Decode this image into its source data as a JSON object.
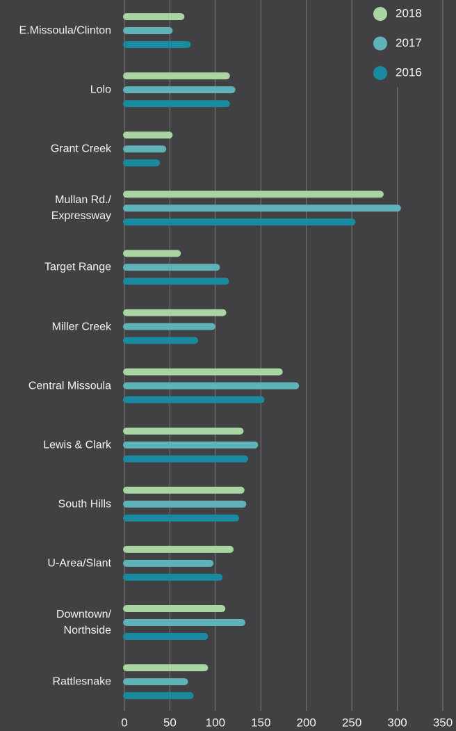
{
  "chart_data": {
    "type": "bar",
    "orientation": "horizontal",
    "categories": [
      "E.Missoula/Clinton",
      "Lolo",
      "Grant Creek",
      "Mullan Rd./\nExpressway",
      "Target Range",
      "Miller Creek",
      "Central Missoula",
      "Lewis & Clark",
      "South Hills",
      "U-Area/Slant",
      "Downtown/\nNorthside",
      "Rattlesnake"
    ],
    "series": [
      {
        "name": "2018",
        "color": "#a8d5a2",
        "values": [
          66,
          116,
          53,
          285,
          62,
          112,
          174,
          131,
          132,
          120,
          111,
          92
        ]
      },
      {
        "name": "2017",
        "color": "#5fb3b8",
        "values": [
          53,
          122,
          46,
          304,
          105,
          100,
          192,
          147,
          134,
          98,
          133,
          70
        ]
      },
      {
        "name": "2016",
        "color": "#1a8aa0",
        "values": [
          73,
          116,
          39,
          254,
          115,
          81,
          154,
          136,
          126,
          108,
          92,
          76
        ]
      }
    ],
    "xlim": [
      0,
      350
    ],
    "xticks": [
      0,
      50,
      100,
      150,
      200,
      250,
      300,
      350
    ],
    "grid": true,
    "legend": "top-right"
  }
}
